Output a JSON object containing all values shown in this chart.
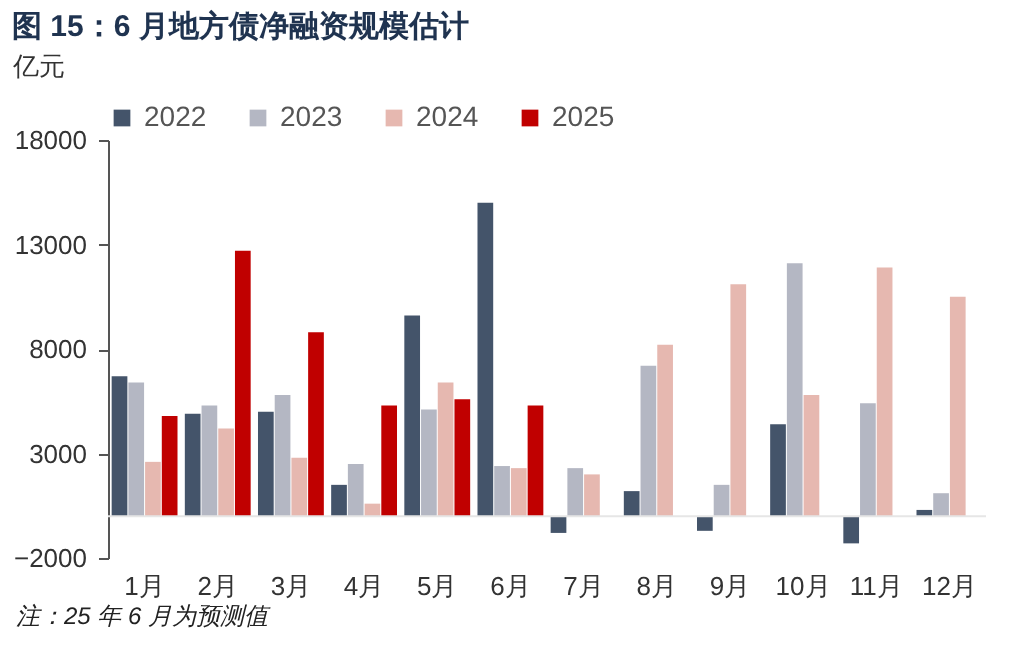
{
  "chart_data": {
    "type": "bar",
    "title": "图 15：6 月地方债净融资规模估计",
    "ylabel": "亿元",
    "categories": [
      "1月",
      "2月",
      "3月",
      "4月",
      "5月",
      "6月",
      "7月",
      "8月",
      "9月",
      "10月",
      "11月",
      "12月"
    ],
    "series": [
      {
        "name": "2022",
        "color": "#44546a",
        "values": [
          6700,
          4900,
          5000,
          1500,
          9600,
          15000,
          -800,
          1200,
          -700,
          4400,
          -1300,
          300
        ]
      },
      {
        "name": "2023",
        "color": "#b4b7c3",
        "values": [
          6400,
          5300,
          5800,
          2500,
          5100,
          2400,
          2300,
          7200,
          1500,
          12100,
          5400,
          1100
        ]
      },
      {
        "name": "2024",
        "color": "#e6b8b0",
        "values": [
          2600,
          4200,
          2800,
          600,
          6400,
          2300,
          2000,
          8200,
          11100,
          5800,
          11900,
          10500
        ]
      },
      {
        "name": "2025",
        "color": "#c00000",
        "values": [
          4800,
          12700,
          8800,
          5300,
          5600,
          5300,
          null,
          null,
          null,
          null,
          null,
          null
        ]
      }
    ],
    "ylim": [
      -2000,
      18000
    ],
    "yticks": [
      -2000,
      3000,
      8000,
      13000,
      18000
    ],
    "grid": false,
    "legend": "top",
    "annotations": [
      "注：25 年 6 月为预测值"
    ]
  }
}
